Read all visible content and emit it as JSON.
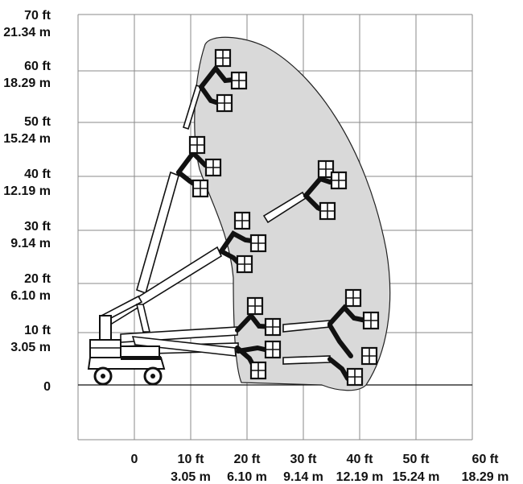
{
  "y_axis": {
    "ticks": [
      {
        "ft": "70 ft",
        "m": "21.34 m"
      },
      {
        "ft": "60 ft",
        "m": "18.29 m"
      },
      {
        "ft": "50 ft",
        "m": "15.24 m"
      },
      {
        "ft": "40 ft",
        "m": "12.19 m"
      },
      {
        "ft": "30 ft",
        "m": "9.14 m"
      },
      {
        "ft": "20 ft",
        "m": "6.10 m"
      },
      {
        "ft": "10 ft",
        "m": "3.05 m"
      },
      {
        "ft": "0",
        "m": ""
      }
    ]
  },
  "x_axis": {
    "ticks": [
      {
        "ft": "0",
        "m": ""
      },
      {
        "ft": "10 ft",
        "m": "3.05 m"
      },
      {
        "ft": "20 ft",
        "m": "6.10 m"
      },
      {
        "ft": "30 ft",
        "m": "9.14 m"
      },
      {
        "ft": "40 ft",
        "m": "12.19 m"
      },
      {
        "ft": "50 ft",
        "m": "15.24 m"
      },
      {
        "ft": "60 ft",
        "m": "18.29 m"
      }
    ]
  },
  "colors": {
    "envelope_fill": "#d9d9d9",
    "ink": "#111111",
    "grid": "#8a8a8a"
  },
  "diagram": {
    "type": "boom-lift working envelope",
    "units": "ft / m"
  }
}
